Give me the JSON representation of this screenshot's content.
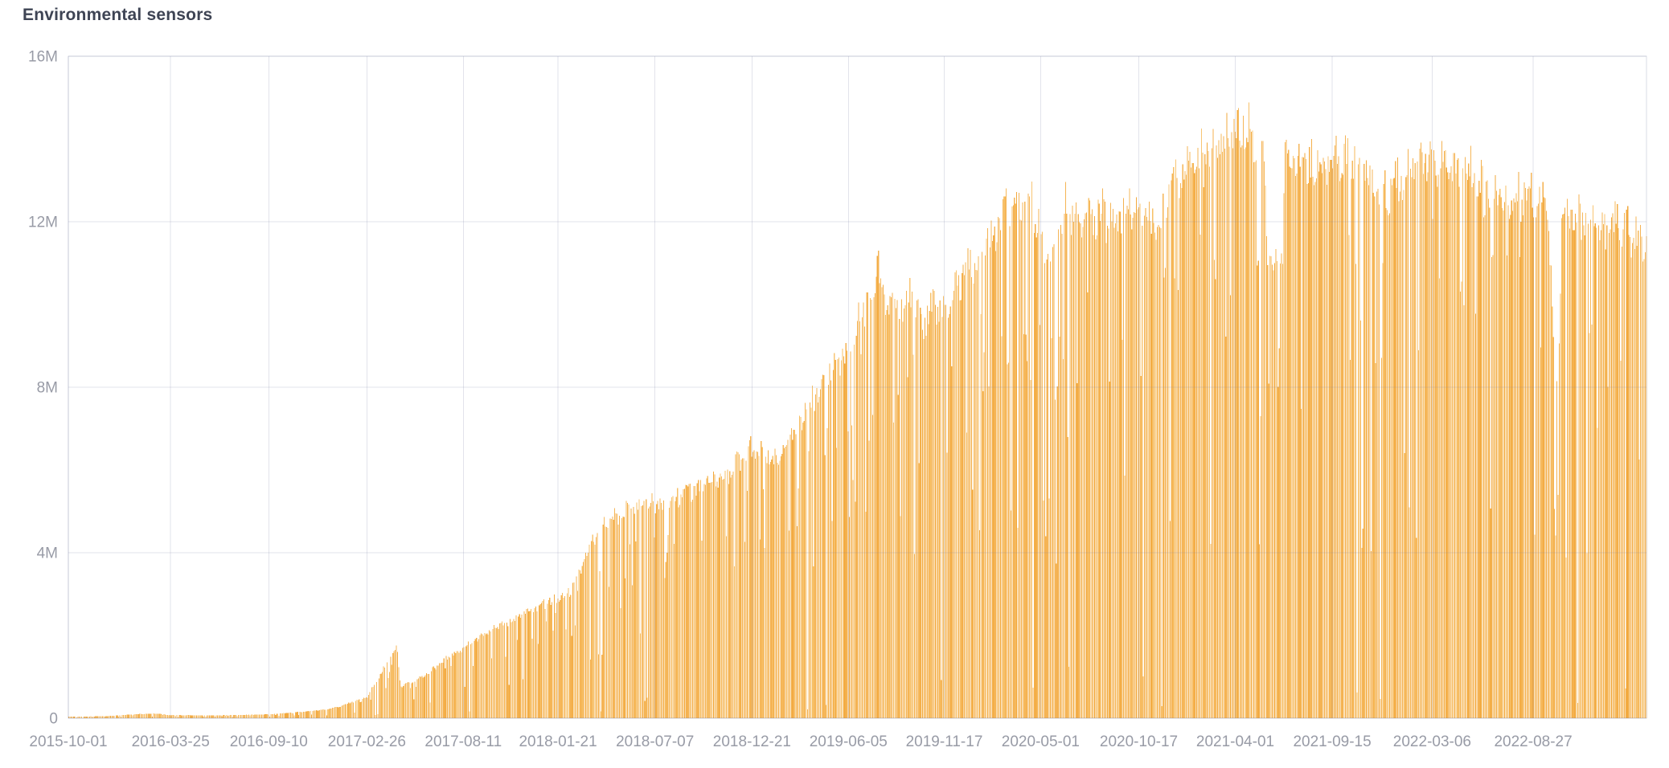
{
  "panel": {
    "title": "Environmental sensors"
  },
  "colors": {
    "background": "#ffffff",
    "title": "#3e4454",
    "axis_label": "#989ba6",
    "gridline": "#e4e6f0",
    "bar_base": "#f5b455"
  },
  "chart_data": {
    "type": "bar",
    "title": "Environmental sensors",
    "unit": "M",
    "legend": false,
    "grid": true,
    "y_axis": {
      "min_m": 0,
      "max_m": 16,
      "ticks": [
        {
          "label": "0",
          "value_m": 0
        },
        {
          "label": "4M",
          "value_m": 4
        },
        {
          "label": "8M",
          "value_m": 8
        },
        {
          "label": "12M",
          "value_m": 12
        },
        {
          "label": "16M",
          "value_m": 16
        }
      ]
    },
    "x_axis": {
      "start": "2015-10-01",
      "end": "2023-03-10",
      "tick_labels": [
        "2015-10-01",
        "2016-03-25",
        "2016-09-10",
        "2017-02-26",
        "2017-08-11",
        "2018-01-21",
        "2018-07-07",
        "2018-12-21",
        "2019-06-05",
        "2019-11-17",
        "2020-05-01",
        "2020-10-17",
        "2021-04-01",
        "2021-09-15",
        "2022-03-06",
        "2022-08-27"
      ]
    },
    "bar_interval_days": 2,
    "bar_palette": [
      "#f5b455",
      "#f5b455",
      "#f4b04c",
      "#f6ba5e",
      "#f3ac44",
      "#f7c067",
      "#f5b658",
      "#f2a93e",
      "#f8c573",
      "#f6b85b",
      "#f4b251",
      "#f5b455"
    ],
    "envelope_points": [
      [
        "2015-10-01",
        0.04
      ],
      [
        "2015-12-01",
        0.05
      ],
      [
        "2016-01-20",
        0.1
      ],
      [
        "2016-03-01",
        0.12
      ],
      [
        "2016-03-25",
        0.08
      ],
      [
        "2016-06-01",
        0.07
      ],
      [
        "2016-09-10",
        0.1
      ],
      [
        "2016-11-01",
        0.16
      ],
      [
        "2016-12-15",
        0.22
      ],
      [
        "2017-01-10",
        0.3
      ],
      [
        "2017-02-26",
        0.55
      ],
      [
        "2017-04-18",
        1.85
      ],
      [
        "2017-04-24",
        0.8
      ],
      [
        "2017-05-15",
        0.95
      ],
      [
        "2017-06-10",
        1.15
      ],
      [
        "2017-07-10",
        1.5
      ],
      [
        "2017-08-11",
        1.8
      ],
      [
        "2017-10-01",
        2.3
      ],
      [
        "2017-12-01",
        2.75
      ],
      [
        "2018-01-21",
        3.1
      ],
      [
        "2018-02-10",
        3.3
      ],
      [
        "2018-04-05",
        5.0
      ],
      [
        "2018-05-01",
        5.25
      ],
      [
        "2018-06-25",
        5.55
      ],
      [
        "2018-07-20",
        5.45
      ],
      [
        "2018-08-10",
        5.7
      ],
      [
        "2018-09-27",
        6.0
      ],
      [
        "2018-11-10",
        6.35
      ],
      [
        "2018-12-20",
        6.9
      ],
      [
        "2019-01-05",
        6.95
      ],
      [
        "2019-01-25",
        6.6
      ],
      [
        "2019-03-15",
        7.7
      ],
      [
        "2019-04-25",
        8.7
      ],
      [
        "2019-06-05",
        9.5
      ],
      [
        "2019-06-25",
        10.4
      ],
      [
        "2019-07-18",
        10.9
      ],
      [
        "2019-07-26",
        12.0
      ],
      [
        "2019-07-30",
        11.2
      ],
      [
        "2019-08-05",
        10.4
      ],
      [
        "2019-08-20",
        10.8
      ],
      [
        "2019-09-05",
        10.5
      ],
      [
        "2019-09-20",
        11.0
      ],
      [
        "2019-10-10",
        10.0
      ],
      [
        "2019-10-25",
        10.6
      ],
      [
        "2019-11-17",
        10.6
      ],
      [
        "2019-12-15",
        11.3
      ],
      [
        "2020-01-20",
        12.0
      ],
      [
        "2020-02-20",
        12.8
      ],
      [
        "2020-03-08",
        13.1
      ],
      [
        "2020-04-12",
        13.2
      ],
      [
        "2020-05-03",
        12.6
      ],
      [
        "2020-05-18",
        11.4
      ],
      [
        "2020-06-10",
        13.2
      ],
      [
        "2020-07-10",
        12.8
      ],
      [
        "2020-08-10",
        13.0
      ],
      [
        "2020-09-10",
        12.9
      ],
      [
        "2020-10-17",
        13.1
      ],
      [
        "2020-11-20",
        12.5
      ],
      [
        "2020-12-08",
        13.5
      ],
      [
        "2021-01-15",
        14.2
      ],
      [
        "2021-02-15",
        14.5
      ],
      [
        "2021-03-20",
        14.9
      ],
      [
        "2021-04-18",
        15.2
      ],
      [
        "2021-05-20",
        14.8
      ],
      [
        "2021-05-26",
        11.6
      ],
      [
        "2021-06-21",
        11.65
      ],
      [
        "2021-06-24",
        14.6
      ],
      [
        "2021-08-01",
        14.15
      ],
      [
        "2021-09-15",
        14.3
      ],
      [
        "2021-10-15",
        14.45
      ],
      [
        "2021-11-10",
        14.0
      ],
      [
        "2021-12-10",
        13.3
      ],
      [
        "2021-12-28",
        13.6
      ],
      [
        "2022-01-25",
        14.1
      ],
      [
        "2022-03-06",
        14.35
      ],
      [
        "2022-04-10",
        14.2
      ],
      [
        "2022-05-10",
        13.9
      ],
      [
        "2022-06-15",
        13.4
      ],
      [
        "2022-07-10",
        13.4
      ],
      [
        "2022-08-10",
        13.55
      ],
      [
        "2022-09-20",
        13.4
      ],
      [
        "2022-10-03",
        8.8
      ],
      [
        "2022-10-09",
        8.7
      ],
      [
        "2022-10-14",
        12.8
      ],
      [
        "2022-11-10",
        12.95
      ],
      [
        "2022-12-10",
        12.6
      ],
      [
        "2023-01-10",
        12.75
      ],
      [
        "2023-02-10",
        12.5
      ],
      [
        "2023-03-10",
        12.4
      ]
    ],
    "dip_windows": [
      {
        "from": "2018-03-30",
        "to": "2018-04-06",
        "gap_prob": 0.55
      },
      {
        "from": "2018-07-02",
        "to": "2018-07-08",
        "gap_prob": 0.35
      },
      {
        "from": "2020-03-04",
        "to": "2020-03-16",
        "gap_prob": 0.14
      },
      {
        "from": "2020-05-04",
        "to": "2020-05-26",
        "gap_prob": 0.1
      },
      {
        "from": "2020-11-24",
        "to": "2020-12-02",
        "gap_prob": 0.3
      },
      {
        "from": "2021-05-08",
        "to": "2021-05-14",
        "gap_prob": 0.4
      },
      {
        "from": "2021-11-22",
        "to": "2021-12-30",
        "gap_prob": 0.12
      },
      {
        "from": "2022-06-06",
        "to": "2022-06-24",
        "gap_prob": 0.12
      }
    ],
    "texture": {
      "full_gap_prob": 0.013,
      "deep_dip_prob": 0.04,
      "mid_dip_prob": 0.1,
      "sawtooth_period_days": 21,
      "sawtooth_depth": 0.05
    }
  }
}
